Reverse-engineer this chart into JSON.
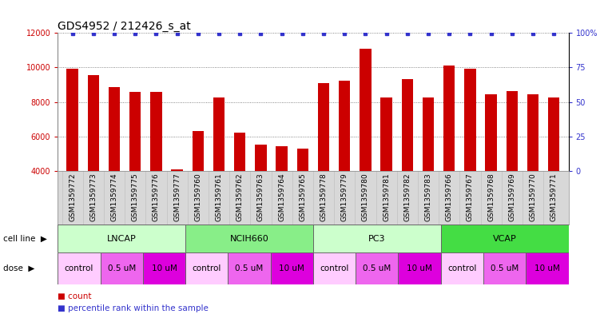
{
  "title": "GDS4952 / 212426_s_at",
  "samples": [
    "GSM1359772",
    "GSM1359773",
    "GSM1359774",
    "GSM1359775",
    "GSM1359776",
    "GSM1359777",
    "GSM1359760",
    "GSM1359761",
    "GSM1359762",
    "GSM1359763",
    "GSM1359764",
    "GSM1359765",
    "GSM1359778",
    "GSM1359779",
    "GSM1359780",
    "GSM1359781",
    "GSM1359782",
    "GSM1359783",
    "GSM1359766",
    "GSM1359767",
    "GSM1359768",
    "GSM1359769",
    "GSM1359770",
    "GSM1359771"
  ],
  "counts": [
    9950,
    9580,
    8850,
    8600,
    8600,
    4100,
    6300,
    8250,
    6250,
    5550,
    5450,
    5300,
    9100,
    9250,
    11100,
    8250,
    9350,
    8250,
    10100,
    9950,
    8450,
    8650,
    8450,
    8250
  ],
  "bar_color": "#cc0000",
  "dot_color": "#3333cc",
  "ylim_left": [
    4000,
    12000
  ],
  "yticks_left": [
    4000,
    6000,
    8000,
    10000,
    12000
  ],
  "ylim_right": [
    0,
    100
  ],
  "yticks_right": [
    0,
    25,
    50,
    75,
    100
  ],
  "cell_lines": [
    {
      "name": "LNCAP",
      "start": 0,
      "end": 6,
      "color": "#ccffcc"
    },
    {
      "name": "NCIH660",
      "start": 6,
      "end": 12,
      "color": "#88ee88"
    },
    {
      "name": "PC3",
      "start": 12,
      "end": 18,
      "color": "#ccffcc"
    },
    {
      "name": "VCAP",
      "start": 18,
      "end": 24,
      "color": "#44dd44"
    }
  ],
  "dose_entries": [
    {
      "name": "control",
      "start": 0,
      "end": 2,
      "color": "#ffccff"
    },
    {
      "name": "0.5 uM",
      "start": 2,
      "end": 4,
      "color": "#ee66ee"
    },
    {
      "name": "10 uM",
      "start": 4,
      "end": 6,
      "color": "#dd00dd"
    },
    {
      "name": "control",
      "start": 6,
      "end": 8,
      "color": "#ffccff"
    },
    {
      "name": "0.5 uM",
      "start": 8,
      "end": 10,
      "color": "#ee66ee"
    },
    {
      "name": "10 uM",
      "start": 10,
      "end": 12,
      "color": "#dd00dd"
    },
    {
      "name": "control",
      "start": 12,
      "end": 14,
      "color": "#ffccff"
    },
    {
      "name": "0.5 uM",
      "start": 14,
      "end": 16,
      "color": "#ee66ee"
    },
    {
      "name": "10 uM",
      "start": 16,
      "end": 18,
      "color": "#dd00dd"
    },
    {
      "name": "control",
      "start": 18,
      "end": 20,
      "color": "#ffccff"
    },
    {
      "name": "0.5 uM",
      "start": 20,
      "end": 22,
      "color": "#ee66ee"
    },
    {
      "name": "10 uM",
      "start": 22,
      "end": 24,
      "color": "#dd00dd"
    }
  ],
  "cell_line_label": "cell line",
  "dose_label": "dose",
  "legend_count": "count",
  "legend_percentile": "percentile rank within the sample",
  "bg_color": "#ffffff",
  "tick_bg_color": "#d8d8d8",
  "grid_color": "#666666",
  "axis_color_left": "#cc0000",
  "axis_color_right": "#3333cc",
  "title_fontsize": 10,
  "tick_fontsize": 6.5,
  "bar_width": 0.55,
  "n_samples": 24
}
